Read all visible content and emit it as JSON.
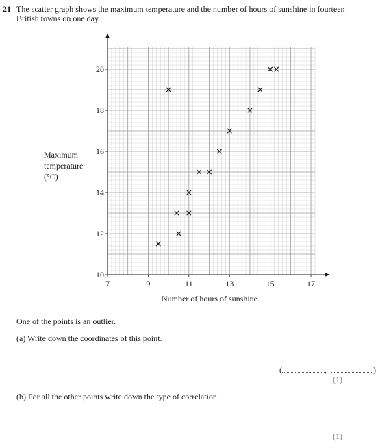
{
  "question": {
    "number": "21",
    "text": "The scatter graph shows the maximum temperature and the number of hours of sunshine in fourteen British towns on one day."
  },
  "y_label_lines": [
    "Maximum",
    "temperature",
    "(°C)"
  ],
  "chart_data": {
    "type": "scatter",
    "xlabel": "Number of hours of sunshine",
    "ylabel": "Maximum temperature (°C)",
    "xlim": [
      7,
      17.2
    ],
    "ylim": [
      10,
      21.1
    ],
    "x_ticks": [
      7,
      9,
      11,
      13,
      15,
      17
    ],
    "y_ticks": [
      10,
      12,
      14,
      16,
      18,
      20
    ],
    "grid": true,
    "marker": "x",
    "points": [
      {
        "x": 9.5,
        "y": 11.5
      },
      {
        "x": 10,
        "y": 19
      },
      {
        "x": 10.4,
        "y": 13
      },
      {
        "x": 10.5,
        "y": 12
      },
      {
        "x": 11,
        "y": 13
      },
      {
        "x": 11,
        "y": 14
      },
      {
        "x": 11.5,
        "y": 15
      },
      {
        "x": 12,
        "y": 15
      },
      {
        "x": 12.5,
        "y": 16
      },
      {
        "x": 13,
        "y": 17
      },
      {
        "x": 14,
        "y": 18
      },
      {
        "x": 14.5,
        "y": 19
      },
      {
        "x": 15,
        "y": 20
      },
      {
        "x": 15.3,
        "y": 20
      }
    ]
  },
  "outlier_intro": "One of the points is an outlier.",
  "part_a": {
    "text": "(a) Write down the coordinates of this point.",
    "open_paren": "(",
    "comma": ",",
    "close_paren": ")",
    "marks": "(1)"
  },
  "part_b": {
    "text": "(b) For all the other points write down the type of correlation.",
    "marks": "(1)"
  }
}
